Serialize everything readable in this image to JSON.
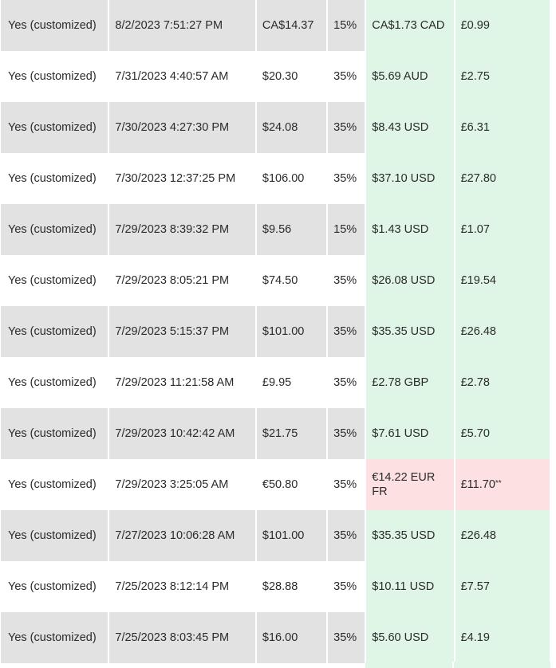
{
  "rows": [
    {
      "customized": "Yes (customized)",
      "date": "8/2/2023 7:51:27 PM",
      "price": "CA$14.37",
      "rate": "15%",
      "royalty": "CA$1.73 CAD",
      "gbp": "£0.99",
      "flag": false
    },
    {
      "customized": "Yes (customized)",
      "date": "7/31/2023 4:40:57 AM",
      "price": "$20.30",
      "rate": "35%",
      "royalty": "$5.69 AUD",
      "gbp": "£2.75",
      "flag": false
    },
    {
      "customized": "Yes (customized)",
      "date": "7/30/2023 4:27:30 PM",
      "price": "$24.08",
      "rate": "35%",
      "royalty": "$8.43 USD",
      "gbp": "£6.31",
      "flag": false
    },
    {
      "customized": "Yes (customized)",
      "date": "7/30/2023 12:37:25 PM",
      "price": "$106.00",
      "rate": "35%",
      "royalty": "$37.10 USD",
      "gbp": "£27.80",
      "flag": false
    },
    {
      "customized": "Yes (customized)",
      "date": "7/29/2023 8:39:32 PM",
      "price": "$9.56",
      "rate": "15%",
      "royalty": "$1.43 USD",
      "gbp": "£1.07",
      "flag": false
    },
    {
      "customized": "Yes (customized)",
      "date": "7/29/2023 8:05:21 PM",
      "price": "$74.50",
      "rate": "35%",
      "royalty": "$26.08 USD",
      "gbp": "£19.54",
      "flag": false
    },
    {
      "customized": "Yes (customized)",
      "date": "7/29/2023 5:15:37 PM",
      "price": "$101.00",
      "rate": "35%",
      "royalty": "$35.35 USD",
      "gbp": "£26.48",
      "flag": false
    },
    {
      "customized": "Yes (customized)",
      "date": "7/29/2023 11:21:58 AM",
      "price": "£9.95",
      "rate": "35%",
      "royalty": "£2.78 GBP",
      "gbp": "£2.78",
      "flag": false
    },
    {
      "customized": "Yes (customized)",
      "date": "7/29/2023 10:42:42 AM",
      "price": "$21.75",
      "rate": "35%",
      "royalty": "$7.61 USD",
      "gbp": "£5.70",
      "flag": false
    },
    {
      "customized": "Yes (customized)",
      "date": "7/29/2023 3:25:05 AM",
      "price": "€50.80",
      "rate": "35%",
      "royalty": "€14.22 EUR FR",
      "gbp": "£11.70",
      "gbp_note": "**",
      "flag": true
    },
    {
      "customized": "Yes (customized)",
      "date": "7/27/2023 10:06:28 AM",
      "price": "$101.00",
      "rate": "35%",
      "royalty": "$35.35 USD",
      "gbp": "£26.48",
      "flag": false
    },
    {
      "customized": "Yes (customized)",
      "date": "7/25/2023 8:12:14 PM",
      "price": "$28.88",
      "rate": "35%",
      "royalty": "$10.11 USD",
      "gbp": "£7.57",
      "flag": false
    },
    {
      "customized": "Yes (customized)",
      "date": "7/25/2023 8:03:45 PM",
      "price": "$16.00",
      "rate": "35%",
      "royalty": "$5.60 USD",
      "gbp": "£4.19",
      "flag": false
    }
  ],
  "colors": {
    "row_shade": "#e2e2e2",
    "row_plain": "#ffffff",
    "earning_ok": "#dff5e5",
    "earning_flag": "#fde0e2",
    "text": "#2b2b2b"
  }
}
